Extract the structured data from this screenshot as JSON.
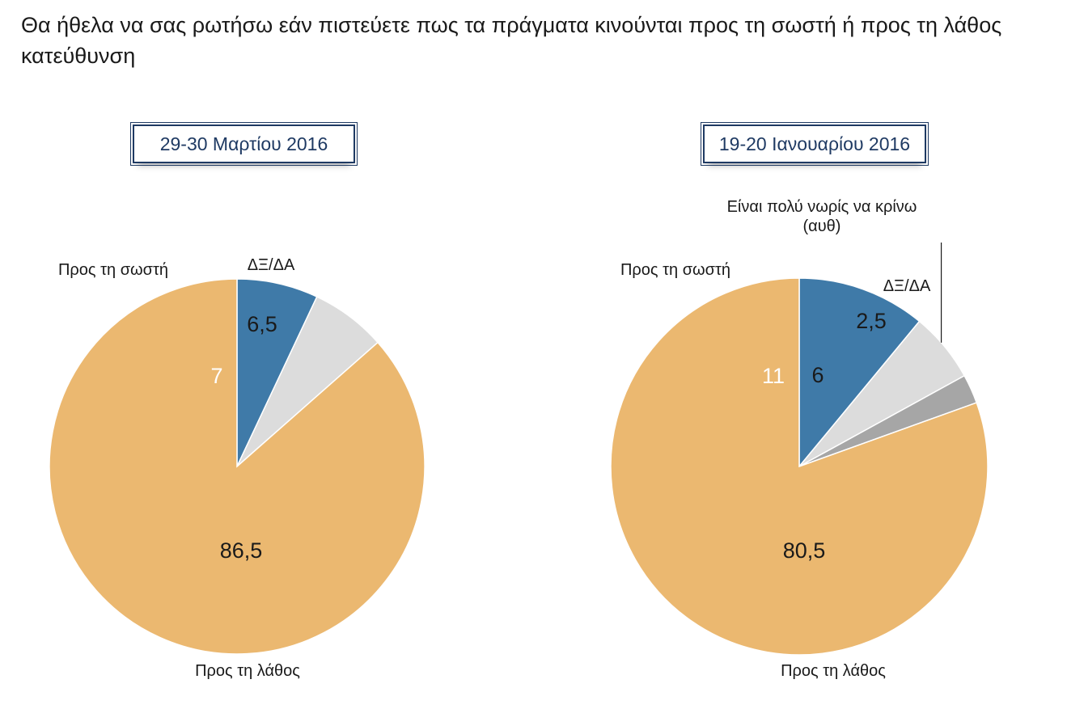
{
  "title": "Θα ήθελα να σας ρωτήσω εάν πιστεύετε πως τα πράγματα κινούνται προς τη σωστή ή προς τη λάθος κατεύθυνση",
  "colors": {
    "right_direction": "#3f7aa8",
    "wrong_direction": "#ebb870",
    "too_early": "#dcdcdc",
    "dk_na": "#a6a6a6",
    "box_border": "#1f3a63"
  },
  "chart_data": [
    {
      "type": "pie",
      "title": "29-30 Μαρτίου 2016",
      "slices": [
        {
          "label": "Προς τη σωστή",
          "value": 7,
          "value_text": "7",
          "color_key": "right_direction"
        },
        {
          "label": "ΔΞ/ΔΑ",
          "value": 6.5,
          "value_text": "6,5",
          "color_key": "too_early"
        },
        {
          "label": "Προς τη λάθος",
          "value": 86.5,
          "value_text": "86,5",
          "color_key": "wrong_direction"
        }
      ]
    },
    {
      "type": "pie",
      "title": "19-20 Ιανουαρίου 2016",
      "slices": [
        {
          "label": "Προς τη σωστή",
          "value": 11,
          "value_text": "11",
          "color_key": "right_direction"
        },
        {
          "label": "Είναι πολύ νωρίς να κρίνω (αυθ)",
          "label_lines": [
            "Είναι πολύ νωρίς να κρίνω",
            "(αυθ)"
          ],
          "value": 6,
          "value_text": "6",
          "color_key": "too_early"
        },
        {
          "label": "ΔΞ/ΔΑ",
          "value": 2.5,
          "value_text": "2,5",
          "color_key": "dk_na"
        },
        {
          "label": "Προς τη λάθος",
          "value": 80.5,
          "value_text": "80,5",
          "color_key": "wrong_direction"
        }
      ]
    }
  ]
}
